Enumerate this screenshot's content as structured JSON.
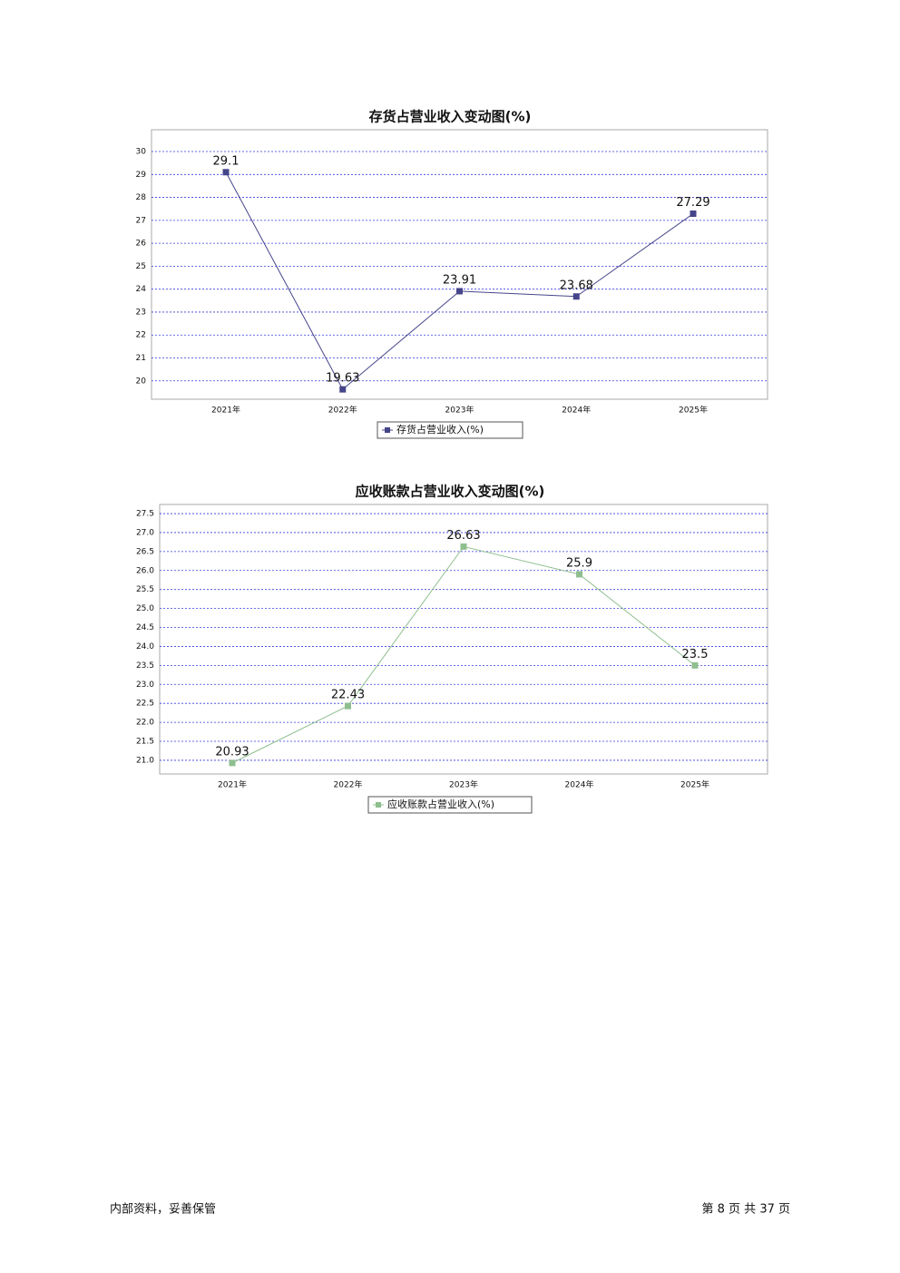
{
  "chart_data": [
    {
      "type": "line",
      "title": "存货占营业收入变动图(%)",
      "categories": [
        "2021年",
        "2022年",
        "2023年",
        "2024年",
        "2025年"
      ],
      "series": [
        {
          "name": "存货占营业收入(%)",
          "color": "#45458a",
          "values": [
            29.1,
            19.63,
            23.91,
            23.68,
            27.29
          ]
        }
      ],
      "ylim": [
        19.2,
        30.95
      ],
      "yticks": [
        20,
        21,
        22,
        23,
        24,
        25,
        26,
        27,
        28,
        29,
        30
      ],
      "grid": true,
      "legend": "bottom"
    },
    {
      "type": "line",
      "title": "应收账款占营业收入变动图(%)",
      "categories": [
        "2021年",
        "2022年",
        "2023年",
        "2024年",
        "2025年"
      ],
      "series": [
        {
          "name": "应收账款占营业收入(%)",
          "color": "#8fbf8f",
          "values": [
            20.93,
            22.43,
            26.63,
            25.9,
            23.5
          ]
        }
      ],
      "ylim": [
        20.64,
        27.74
      ],
      "yticks": [
        {
          "value": 21,
          "label": "21.0"
        },
        {
          "value": 21.5,
          "label": "21.5"
        },
        {
          "value": 22,
          "label": "22.0"
        },
        {
          "value": 22.5,
          "label": "22.5"
        },
        {
          "value": 23,
          "label": "23.0"
        },
        {
          "value": 23.5,
          "label": "23.5"
        },
        {
          "value": 24,
          "label": "24.0"
        },
        {
          "value": 24.5,
          "label": "24.5"
        },
        {
          "value": 25,
          "label": "25.0"
        },
        {
          "value": 25.5,
          "label": "25.5"
        },
        {
          "value": 26,
          "label": "26.0"
        },
        {
          "value": 26.5,
          "label": "26.5"
        },
        {
          "value": 27,
          "label": "27.0"
        },
        {
          "value": 27.5,
          "label": "27.5"
        }
      ],
      "grid": true,
      "legend": "bottom"
    }
  ],
  "footer": {
    "left": "内部资料，妥善保管",
    "right": "第 8 页 共 37 页"
  }
}
